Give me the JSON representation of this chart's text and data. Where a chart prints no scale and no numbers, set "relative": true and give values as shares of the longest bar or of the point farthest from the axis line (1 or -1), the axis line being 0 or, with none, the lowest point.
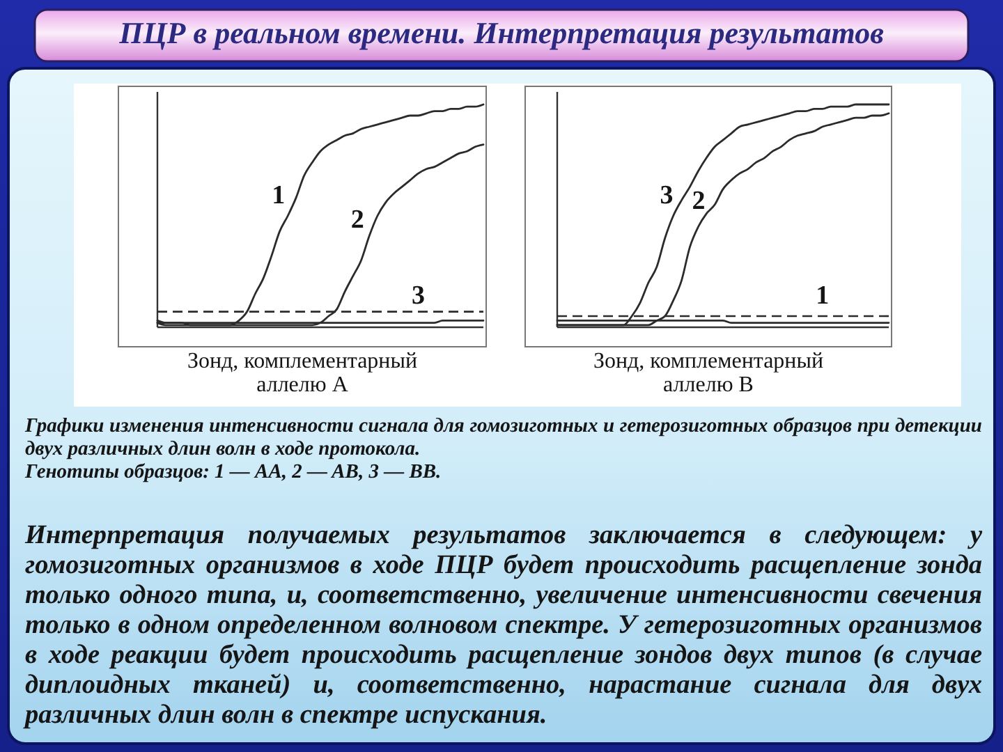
{
  "chart_data": [
    {
      "type": "other",
      "title": "ПЦР в реальном времени. Интерпретация результатов"
    },
    {
      "type": "line",
      "relative": true,
      "categories": [
        null,
        null,
        null,
        null,
        null,
        null,
        null,
        null,
        null,
        null,
        null,
        null,
        null,
        null,
        null,
        null,
        null,
        null,
        null,
        null,
        null,
        null,
        null,
        null,
        null,
        null,
        null,
        null,
        null,
        null,
        null,
        null,
        null,
        null,
        null,
        null,
        null,
        null,
        null,
        null,
        null
      ],
      "series": [
        {
          "name": "1",
          "color": "#2b2b2b",
          "values": [
            0.03,
            0.02,
            0.02,
            0.02,
            0.01,
            0.01,
            0.01,
            0.01,
            0.01,
            0.01,
            0.03,
            0.07,
            0.15,
            0.22,
            0.32,
            0.43,
            0.5,
            0.58,
            0.68,
            0.74,
            0.79,
            0.82,
            0.84,
            0.86,
            0.87,
            0.89,
            0.9,
            0.91,
            0.92,
            0.93,
            0.94,
            0.95,
            0.95,
            0.96,
            0.97,
            0.97,
            0.98,
            0.98,
            0.99,
            0.99,
            1
          ]
        },
        {
          "name": "2",
          "color": "#2b2b2b",
          "values": [
            0.02,
            0.01,
            0.01,
            0.01,
            0.01,
            0.01,
            0.01,
            0.01,
            0.01,
            0.01,
            0.01,
            0.01,
            0.01,
            0.01,
            0.01,
            0.01,
            0.01,
            0.01,
            0.01,
            0.01,
            0.02,
            0.05,
            0.08,
            0.16,
            0.23,
            0.3,
            0.41,
            0.5,
            0.56,
            0.6,
            0.63,
            0.66,
            0.69,
            0.71,
            0.72,
            0.74,
            0.76,
            0.78,
            0.79,
            0.81,
            0.82
          ]
        },
        {
          "name": "3",
          "color": "#2b2b2b",
          "values": [
            0.02,
            0.02,
            0.02,
            0.02,
            0.02,
            0.02,
            0.02,
            0.02,
            0.02,
            0.02,
            0.02,
            0.02,
            0.02,
            0.02,
            0.02,
            0.02,
            0.02,
            0.02,
            0.02,
            0.02,
            0.02,
            0.02,
            0.02,
            0.02,
            0.02,
            0.02,
            0.02,
            0.02,
            0.02,
            0.02,
            0.02,
            0.02,
            0.02,
            0.02,
            0.02,
            0.03,
            0.03,
            0.03,
            0.03,
            0.03,
            0.03
          ]
        }
      ],
      "ref_lines": [
        {
          "axis": "y",
          "value": 0.07,
          "line_style": "dashed",
          "color": "#2b2b2b"
        }
      ],
      "annotations": [
        "Зонд, комплементарный аллелю А"
      ]
    },
    {
      "type": "line",
      "relative": true,
      "categories": [
        null,
        null,
        null,
        null,
        null,
        null,
        null,
        null,
        null,
        null,
        null,
        null,
        null,
        null,
        null,
        null,
        null,
        null,
        null,
        null,
        null,
        null,
        null,
        null,
        null,
        null,
        null,
        null,
        null,
        null,
        null,
        null,
        null,
        null,
        null,
        null,
        null,
        null,
        null,
        null,
        null
      ],
      "series": [
        {
          "name": "1",
          "color": "#2b2b2b",
          "values": [
            0.03,
            0.03,
            0.03,
            0.03,
            0.03,
            0.03,
            0.03,
            0.03,
            0.03,
            0.03,
            0.03,
            0.03,
            0.03,
            0.03,
            0.03,
            0.03,
            0.03,
            0.03,
            0.03,
            0.03,
            0.03,
            0.02,
            0.02,
            0.02,
            0.02,
            0.02,
            0.02,
            0.02,
            0.02,
            0.02,
            0.02,
            0.02,
            0.02,
            0.02,
            0.02,
            0.02,
            0.02,
            0.02,
            0.02,
            0.02,
            0.02
          ]
        },
        {
          "name": "2",
          "color": "#2b2b2b",
          "values": [
            0.01,
            0.01,
            0.01,
            0.01,
            0.01,
            0.01,
            0.01,
            0.01,
            0.01,
            0.01,
            0.01,
            0.01,
            0.03,
            0.05,
            0.12,
            0.21,
            0.36,
            0.45,
            0.51,
            0.55,
            0.62,
            0.66,
            0.69,
            0.71,
            0.74,
            0.76,
            0.79,
            0.81,
            0.84,
            0.86,
            0.87,
            0.88,
            0.9,
            0.91,
            0.92,
            0.93,
            0.94,
            0.94,
            0.95,
            0.95,
            0.96
          ]
        },
        {
          "name": "3",
          "color": "#2b2b2b",
          "values": [
            0.01,
            0.01,
            0.01,
            0.01,
            0.01,
            0.01,
            0.01,
            0.01,
            0.01,
            0.05,
            0.11,
            0.2,
            0.27,
            0.4,
            0.5,
            0.57,
            0.63,
            0.7,
            0.76,
            0.81,
            0.84,
            0.87,
            0.9,
            0.91,
            0.92,
            0.93,
            0.94,
            0.95,
            0.96,
            0.97,
            0.97,
            0.98,
            0.98,
            0.99,
            0.99,
            0.99,
            1,
            1,
            1,
            1,
            1
          ]
        }
      ],
      "ref_lines": [
        {
          "axis": "y",
          "value": 0.05,
          "line_style": "dashed",
          "color": "#2b2b2b"
        }
      ],
      "annotations": [
        "Зонд, комплементарный аллелю В"
      ]
    },
    {
      "type": "other",
      "annotations": [
        "Графики изменения интенсивности сигнала для гомозиготных и гетерозиготных образцов при детекции двух различных длин волн в ходе протокола.",
        "Генотипы образцов: 1 — AA, 2 — AB, 3 — BB.",
        "Интерпретация получаемых результатов заключается в следующем: у гомозиготных организмов в ходе ПЦР будет происходить расщепление зонда только одного типа, и, соответственно, увеличение интенсивности свечения только в одном определенном волновом спектре. У гетерозиготных организмов в ходе реакции будет происходить расщепление зондов двух типов (в случае диплоидных тканей) и, соответственно, нарастание сигнала для двух различных длин волн в спектре испускания."
      ]
    }
  ]
}
